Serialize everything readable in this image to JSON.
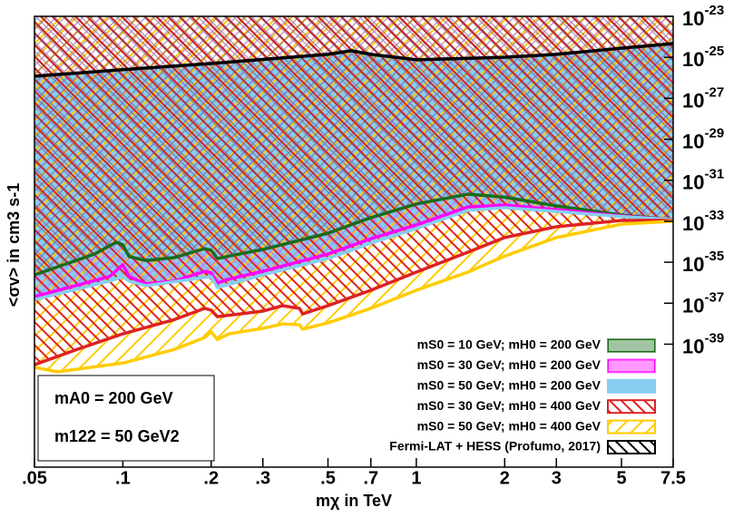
{
  "chart_data": {
    "type": "area",
    "x_label": "mχ in TeV",
    "y_label": "<σv> in cm3 s-1",
    "xscale": "log",
    "yscale": "log",
    "xlim": [
      0.05,
      7.5
    ],
    "ylim": [
      1e-45,
      1e-23
    ],
    "xticks": [
      {
        "value": 0.05,
        "label": ".05"
      },
      {
        "value": 0.1,
        "label": ".1"
      },
      {
        "value": 0.2,
        "label": ".2"
      },
      {
        "value": 0.3,
        "label": ".3"
      },
      {
        "value": 0.5,
        "label": ".5"
      },
      {
        "value": 0.7,
        "label": ".7"
      },
      1,
      2,
      3,
      5,
      7.5
    ],
    "yticks": [
      {
        "value": 1e-23,
        "label": "10",
        "exponent": "-23"
      },
      {
        "value": 1e-25,
        "label": "10",
        "exponent": "-25"
      },
      {
        "value": 1e-27,
        "label": "10",
        "exponent": "-27"
      },
      {
        "value": 1e-29,
        "label": "10",
        "exponent": "-29"
      },
      {
        "value": 1e-31,
        "label": "10",
        "exponent": "-31"
      },
      {
        "value": 1e-33,
        "label": "10",
        "exponent": "-33"
      },
      {
        "value": 1e-35,
        "label": "10",
        "exponent": "-35"
      },
      {
        "value": 1e-37,
        "label": "10",
        "exponent": "-37"
      },
      {
        "value": 1e-39,
        "label": "10",
        "exponent": "-39"
      }
    ],
    "annotations": [
      "mA0 = 200 GeV",
      "m122 = 50 GeV2"
    ],
    "legend": "lower right",
    "series": [
      {
        "name": "mS0 = 10 GeV; mH0 = 200 GeV",
        "color": "#1a6b1a",
        "hatch": "cross",
        "x": [
          0.05,
          0.08,
          0.095,
          0.1,
          0.105,
          0.12,
          0.15,
          0.19,
          0.2,
          0.21,
          0.23,
          0.3,
          0.5,
          0.7,
          1,
          1.5,
          2,
          3,
          5,
          7.5
        ],
        "values": [
          2.4e-36,
          2.5e-35,
          9.5e-35,
          7e-35,
          1.9e-35,
          1.2e-35,
          1.7e-35,
          4.6e-35,
          3.8e-35,
          1.5e-35,
          2e-35,
          4.2e-35,
          2.6e-34,
          1.5e-33,
          6.9e-33,
          2.1e-32,
          1.5e-32,
          5.6e-33,
          2e-33,
          1.2e-33
        ]
      },
      {
        "name": "mS0 = 30 GeV; mH0 = 200 GeV",
        "color": "#ff00ff",
        "hatch": "cross",
        "x": [
          0.05,
          0.09,
          0.1,
          0.105,
          0.12,
          0.15,
          0.19,
          0.2,
          0.21,
          0.23,
          0.3,
          0.5,
          0.7,
          1,
          1.5,
          2,
          3,
          5,
          7.5
        ],
        "values": [
          2.1e-37,
          2e-36,
          7.5e-36,
          2e-36,
          8.7e-37,
          1.2e-36,
          3.6e-36,
          3e-36,
          9.7e-37,
          1.5e-36,
          3.6e-36,
          2.5e-35,
          1.4e-34,
          6.6e-34,
          5e-33,
          6.1e-33,
          3.7e-33,
          1.8e-33,
          1.2e-33
        ]
      },
      {
        "name": "mS0 = 50 GeV; mH0 = 200 GeV",
        "color": "#87cef0",
        "hatch": "solid",
        "x": [
          0.05,
          0.09,
          0.1,
          0.105,
          0.12,
          0.2,
          0.21,
          0.3,
          0.5,
          0.7,
          1,
          1.5,
          2,
          3,
          5,
          7.5
        ],
        "values": [
          1.5e-37,
          1.2e-36,
          2e-36,
          1.2e-36,
          7.1e-37,
          2e-36,
          5.8e-37,
          2.4e-36,
          1.5e-35,
          8.5e-35,
          4.4e-34,
          3.4e-33,
          4.6e-33,
          3e-33,
          1.7e-33,
          1.2e-33
        ]
      },
      {
        "name": "mS0 = 30 GeV; mH0 = 400 GeV",
        "color": "#dd2222",
        "hatch": "back",
        "x": [
          0.05,
          0.07,
          0.1,
          0.15,
          0.19,
          0.2,
          0.21,
          0.3,
          0.35,
          0.4,
          0.41,
          0.5,
          0.7,
          1,
          1.5,
          2,
          3,
          5,
          7.5
        ],
        "values": [
          1e-40,
          5.6e-40,
          3.2e-39,
          1.6e-38,
          5.6e-38,
          4.6e-38,
          2.2e-38,
          4.1e-38,
          7.6e-38,
          5.6e-38,
          3e-38,
          7.6e-38,
          4.3e-37,
          3.3e-36,
          3.1e-35,
          1.6e-34,
          5.4e-34,
          1.1e-33,
          1.1e-33
        ]
      },
      {
        "name": "mS0 = 50 GeV; mH0 = 400 GeV",
        "color": "#ffcc00",
        "hatch": "forward",
        "x": [
          0.05,
          0.06,
          0.1,
          0.15,
          0.19,
          0.2,
          0.21,
          0.23,
          0.3,
          0.35,
          0.4,
          0.41,
          0.5,
          0.7,
          1,
          1.5,
          2,
          3,
          5,
          7.5
        ],
        "values": [
          7.4e-41,
          4.5e-41,
          1.2e-40,
          5.6e-40,
          2.1e-39,
          4e-39,
          1.7e-39,
          3.2e-39,
          5.9e-39,
          9.8e-39,
          8.9e-39,
          5.4e-39,
          1.1e-38,
          5.6e-38,
          4.3e-37,
          3.3e-36,
          2e-35,
          1.6e-34,
          7.2e-34,
          1e-33
        ]
      },
      {
        "name": "Fermi-LAT + HESS (Profumo, 2017)",
        "color": "#000000",
        "hatch": "back",
        "background": "#ffffff",
        "x": [
          0.05,
          0.1,
          0.2,
          0.5,
          0.6,
          0.7,
          1,
          2,
          3,
          5,
          7.5
        ],
        "values": [
          1.2e-26,
          2.5e-26,
          5e-26,
          1.4e-25,
          2.1e-25,
          1.4e-25,
          7.6e-26,
          1e-25,
          1.4e-25,
          2.8e-25,
          4.7e-25
        ]
      }
    ]
  }
}
